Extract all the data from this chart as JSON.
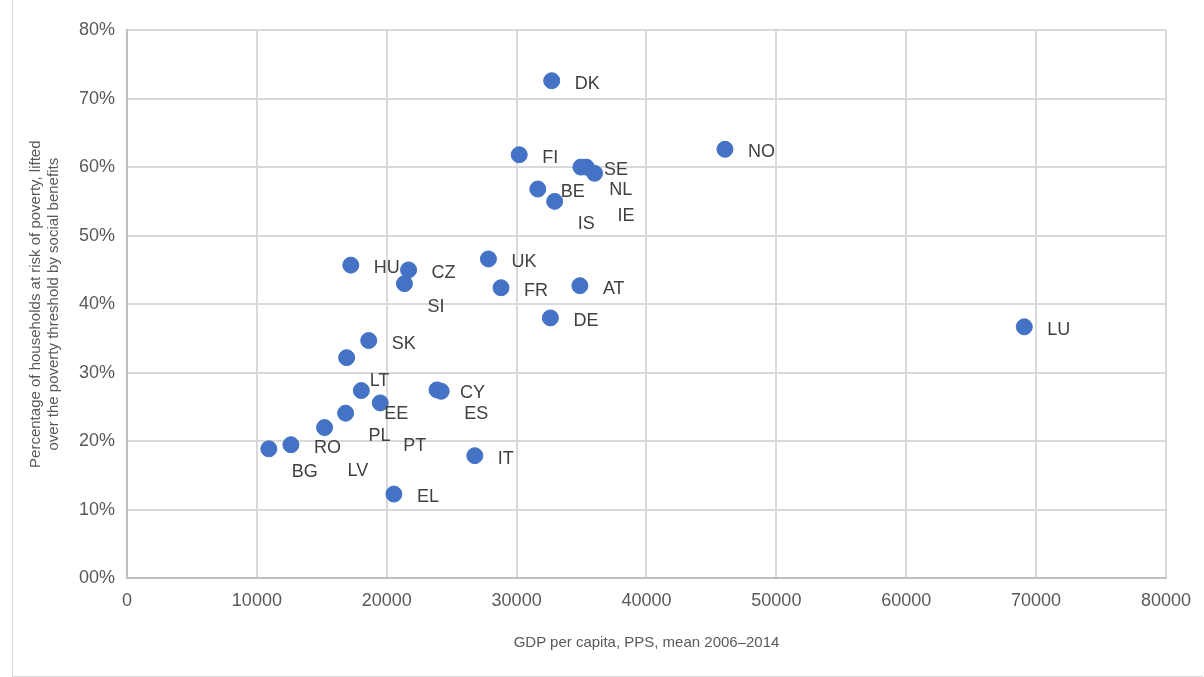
{
  "chart_data": {
    "type": "scatter",
    "xlabel": "GDP per capita, PPS, mean 2006–2014",
    "ylabel": "Percentage of households at risk of poverty, lifted over the poverty threshold by social benefits",
    "series": [
      {
        "color": "#4472c4",
        "x": [
          32700,
          30200,
          34950,
          35360,
          36000,
          31630,
          32930,
          46040,
          27830,
          17230,
          21680,
          21360,
          28800,
          34870,
          32600,
          69090,
          18610,
          16910,
          18040,
          23870,
          24190,
          19500,
          16830,
          15210,
          12620,
          10920,
          26780,
          20550
        ],
        "values": [
          72.6,
          61.8,
          60.0,
          60.0,
          59.1,
          56.8,
          55.0,
          62.6,
          46.6,
          45.7,
          45.0,
          43.0,
          42.4,
          42.7,
          38.0,
          36.7,
          34.7,
          32.2,
          27.4,
          27.5,
          27.3,
          25.6,
          24.1,
          22.0,
          19.5,
          18.9,
          17.9,
          12.3
        ]
      }
    ],
    "annotations": [
      {
        "text": "DK",
        "x": 32700,
        "y": 72.6
      },
      {
        "text": "FI",
        "x": 30200,
        "y": 61.8
      },
      {
        "text": "SE",
        "x": 34950,
        "y": 60.0
      },
      {
        "text": "NL",
        "x": 35360,
        "y": 60.0
      },
      {
        "text": "IE",
        "x": 36000,
        "y": 59.1
      },
      {
        "text": "BE",
        "x": 31630,
        "y": 56.8
      },
      {
        "text": "IS",
        "x": 32930,
        "y": 55.0
      },
      {
        "text": "NO",
        "x": 46040,
        "y": 62.6
      },
      {
        "text": "UK",
        "x": 27830,
        "y": 46.6
      },
      {
        "text": "HU",
        "x": 17230,
        "y": 45.7
      },
      {
        "text": "CZ",
        "x": 21680,
        "y": 45.0
      },
      {
        "text": "SI",
        "x": 21360,
        "y": 43.0
      },
      {
        "text": "FR",
        "x": 28800,
        "y": 42.4
      },
      {
        "text": "AT",
        "x": 34870,
        "y": 42.7
      },
      {
        "text": "DE",
        "x": 32600,
        "y": 38.0
      },
      {
        "text": "LU",
        "x": 69090,
        "y": 36.7
      },
      {
        "text": "SK",
        "x": 18610,
        "y": 34.7
      },
      {
        "text": "LT",
        "x": 16910,
        "y": 32.2
      },
      {
        "text": "EE",
        "x": 18040,
        "y": 27.4
      },
      {
        "text": "CY",
        "x": 23870,
        "y": 27.5
      },
      {
        "text": "ES",
        "x": 24190,
        "y": 27.3
      },
      {
        "text": "PT",
        "x": 19500,
        "y": 25.6
      },
      {
        "text": "PL",
        "x": 16830,
        "y": 24.1
      },
      {
        "text": "LV",
        "x": 15210,
        "y": 22.0
      },
      {
        "text": "RO",
        "x": 12620,
        "y": 19.5
      },
      {
        "text": "BG",
        "x": 10920,
        "y": 18.9
      },
      {
        "text": "IT",
        "x": 26780,
        "y": 17.9
      },
      {
        "text": "EL",
        "x": 20550,
        "y": 12.3
      }
    ],
    "xlim": [
      0,
      80000
    ],
    "xticks": [
      0,
      10000,
      20000,
      30000,
      40000,
      50000,
      60000,
      70000,
      80000
    ],
    "ylim": [
      0,
      80
    ],
    "yticks": [
      {
        "value": 0,
        "label": "00%"
      },
      {
        "value": 10,
        "label": "10%"
      },
      {
        "value": 20,
        "label": "20%"
      },
      {
        "value": 30,
        "label": "30%"
      },
      {
        "value": 40,
        "label": "40%"
      },
      {
        "value": 50,
        "label": "50%"
      },
      {
        "value": 60,
        "label": "60%"
      },
      {
        "value": 70,
        "label": "70%"
      },
      {
        "value": 80,
        "label": "80%"
      }
    ],
    "grid": true,
    "marker": "circle"
  }
}
